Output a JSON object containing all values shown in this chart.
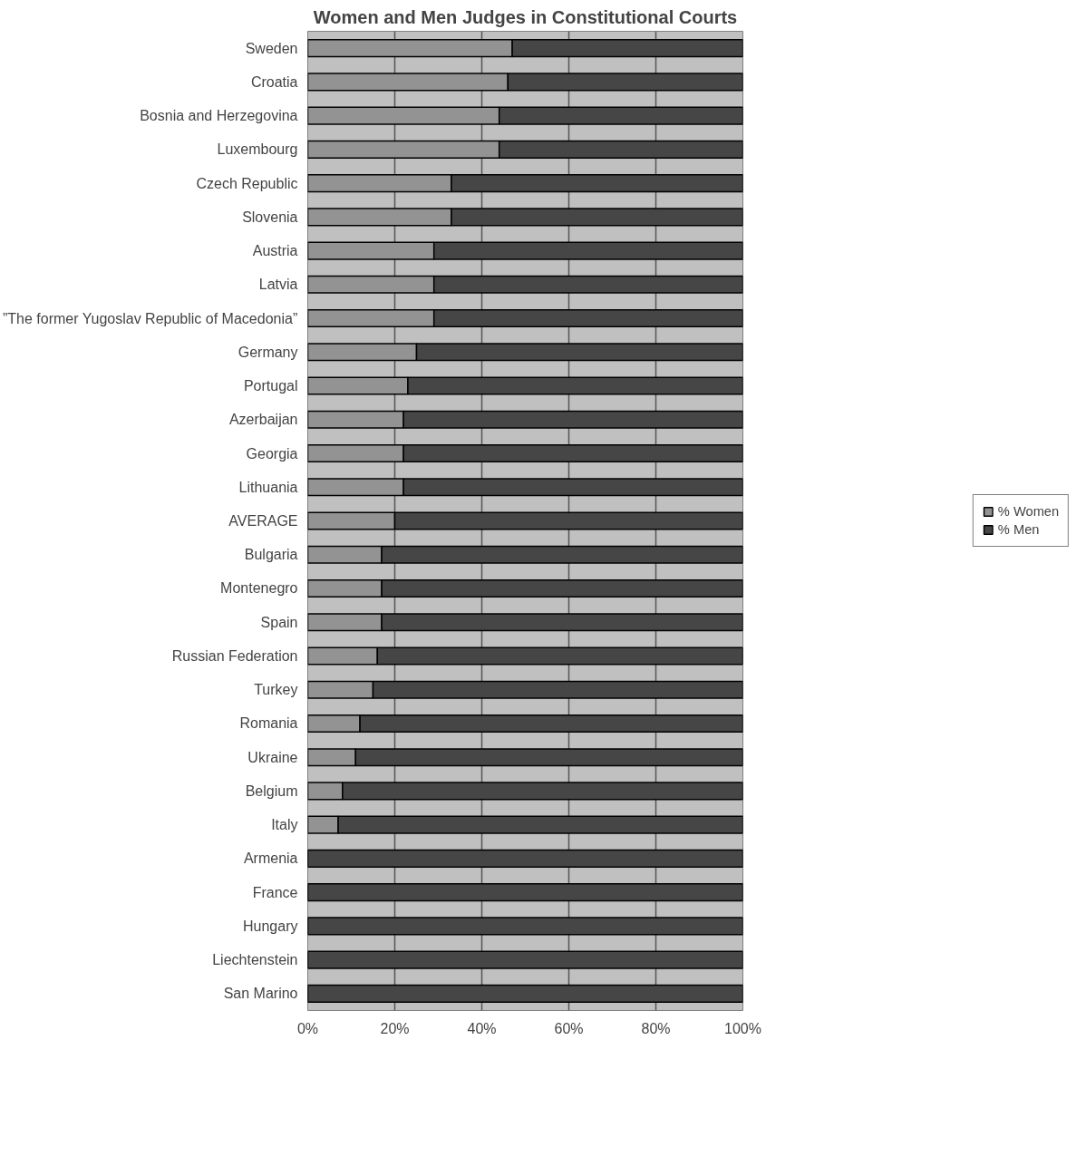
{
  "chart_data": {
    "type": "bar",
    "orientation": "horizontal",
    "stacked": true,
    "title": "Women and Men Judges in Constitutional Courts",
    "categories": [
      "Sweden",
      "Croatia",
      "Bosnia and Herzegovina",
      "Luxembourg",
      "Czech Republic",
      "Slovenia",
      "Austria",
      "Latvia",
      "”The former Yugoslav Republic of Macedonia”",
      "Germany",
      "Portugal",
      "Azerbaijan",
      "Georgia",
      "Lithuania",
      "AVERAGE",
      "Bulgaria",
      "Montenegro",
      "Spain",
      "Russian Federation",
      "Turkey",
      "Romania",
      "Ukraine",
      "Belgium",
      "Italy",
      "Armenia",
      "France",
      "Hungary",
      "Liechtenstein",
      "San Marino"
    ],
    "series": [
      {
        "name": "% Women",
        "color": "#939393",
        "values": [
          47,
          46,
          44,
          44,
          33,
          33,
          29,
          29,
          29,
          25,
          23,
          22,
          22,
          22,
          20,
          17,
          17,
          17,
          16,
          15,
          12,
          11,
          8,
          7,
          0,
          0,
          0,
          0,
          0
        ]
      },
      {
        "name": "% Men",
        "color": "#464646",
        "values": [
          53,
          54,
          56,
          56,
          67,
          67,
          71,
          71,
          71,
          75,
          77,
          78,
          78,
          78,
          80,
          83,
          83,
          83,
          84,
          85,
          88,
          89,
          92,
          93,
          100,
          100,
          100,
          100,
          100
        ]
      }
    ],
    "xlim": [
      0,
      100
    ],
    "xticks": [
      {
        "value": 0,
        "label": "0%"
      },
      {
        "value": 20,
        "label": "20%"
      },
      {
        "value": 40,
        "label": "40%"
      },
      {
        "value": 60,
        "label": "60%"
      },
      {
        "value": 80,
        "label": "80%"
      },
      {
        "value": 100,
        "label": "100%"
      }
    ],
    "grid": "x",
    "legend": "right"
  }
}
